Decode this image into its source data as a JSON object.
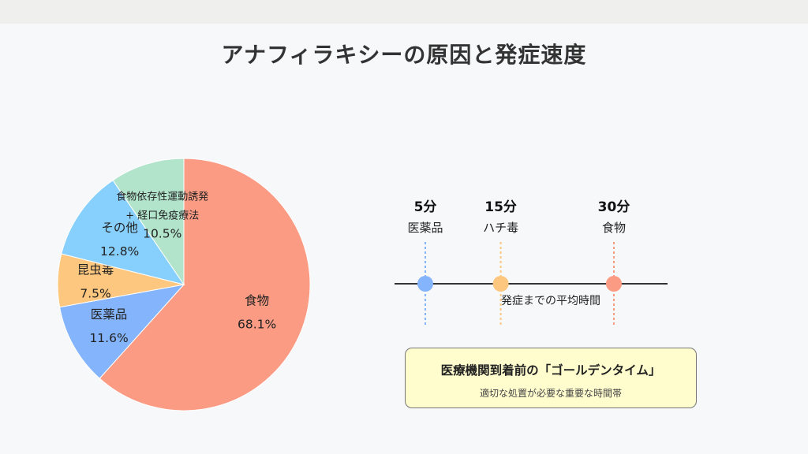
{
  "title": "アナフィラキシーの原因と発症速度",
  "chart_data": [
    {
      "type": "pie",
      "slices": [
        {
          "label": "食物",
          "value": 68.1,
          "value_label": "68.1%",
          "color": "#fb9b84"
        },
        {
          "label": "医薬品",
          "value": 11.6,
          "value_label": "11.6%",
          "color": "#84b4fb"
        },
        {
          "label": "昆虫毒",
          "value": 7.5,
          "value_label": "7.5%",
          "color": "#fdc77f"
        },
        {
          "label": "その他",
          "value": 12.8,
          "value_label": "12.8%",
          "color": "#87cffc"
        },
        {
          "label_lines": [
            "食物依存性運動誘発",
            "+ 経口免疫療法"
          ],
          "value": 10.5,
          "value_label": "10.5%",
          "color": "#b2e4cc"
        }
      ]
    },
    {
      "type": "timeline",
      "axis_label": "発症までの平均時間",
      "x_unit": "分",
      "points": [
        {
          "minutes": 5,
          "time_label": "5分",
          "cause": "医薬品",
          "color": "#84b4fb"
        },
        {
          "minutes": 15,
          "time_label": "15分",
          "cause": "ハチ毒",
          "color": "#fdc77f"
        },
        {
          "minutes": 30,
          "time_label": "30分",
          "cause": "食物",
          "color": "#fb9b84"
        }
      ]
    }
  ],
  "golden_time": {
    "title": "医療機関到着前の「ゴールデンタイム」",
    "subtitle": "適切な処置が必要な重要な時間帯"
  }
}
